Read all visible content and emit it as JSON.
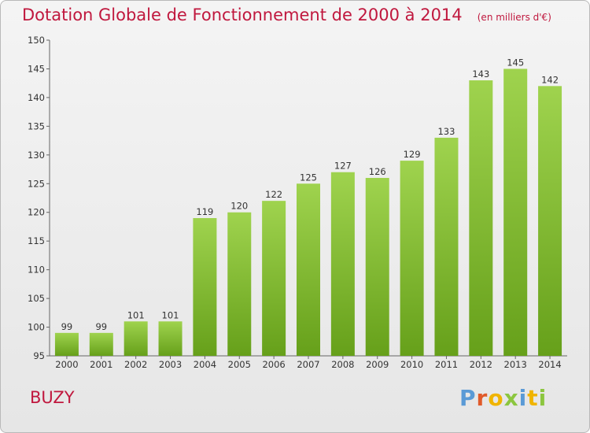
{
  "header": {
    "title": "Dotation Globale de Fonctionnement de 2000 à 2014",
    "subtitle": "(en milliers d'€)"
  },
  "footer": {
    "label": "BUZY",
    "brand_letters": [
      "P",
      "r",
      "o",
      "x",
      "i",
      "t",
      "i"
    ]
  },
  "colors": {
    "title": "#c0183e",
    "bar_top": "#9fd34e",
    "bar_bottom": "#66a01a",
    "brand": [
      "#5a9ad6",
      "#e05a2a",
      "#f0b400",
      "#8cc63f",
      "#5a9ad6",
      "#f0b400",
      "#8cc63f"
    ]
  },
  "chart_data": {
    "type": "bar",
    "categories": [
      "2000",
      "2001",
      "2002",
      "2003",
      "2004",
      "2005",
      "2006",
      "2007",
      "2008",
      "2009",
      "2010",
      "2011",
      "2012",
      "2013",
      "2014"
    ],
    "values": [
      99,
      99,
      101,
      101,
      119,
      120,
      122,
      125,
      127,
      126,
      129,
      133,
      143,
      145,
      142
    ],
    "data_labels": [
      "99",
      "99",
      "101",
      "101",
      "119",
      "120",
      "122",
      "125",
      "127",
      "126",
      "129",
      "133",
      "143",
      "145",
      "142"
    ],
    "yticks": [
      "95",
      "100",
      "105",
      "110",
      "115",
      "120",
      "125",
      "130",
      "135",
      "140",
      "145",
      "150"
    ],
    "ylim": [
      95,
      150
    ],
    "grid": false,
    "legend": "none"
  }
}
